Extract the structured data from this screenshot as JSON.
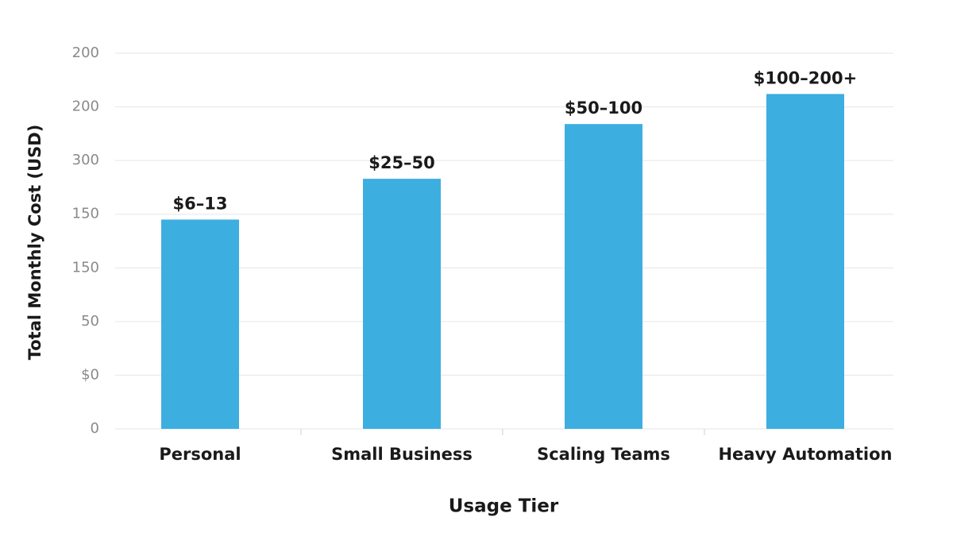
{
  "chart_data": {
    "type": "bar",
    "y_axis_label": "Total Monthly Cost (USD)",
    "x_axis_label": "Usage Tier",
    "categories": [
      "Personal",
      "Small Business",
      "Scaling Teams",
      "Heavy Automation"
    ],
    "values": [
      3.9,
      4.66,
      5.68,
      6.24
    ],
    "value_labels": [
      "$6–13",
      "$25–50",
      "$50–100",
      "$100–200+"
    ],
    "color": "#3daee0",
    "ylim": [
      0,
      7
    ],
    "yticks": [
      0,
      {
        "value": 1,
        "label": "$0"
      },
      {
        "value": 2,
        "label": "50"
      },
      {
        "value": 3,
        "label": "150"
      },
      {
        "value": 4,
        "label": "150"
      },
      {
        "value": 5,
        "label": "300"
      },
      {
        "value": 6,
        "label": "200"
      },
      {
        "value": 7,
        "label": "200"
      }
    ],
    "grid": true
  }
}
